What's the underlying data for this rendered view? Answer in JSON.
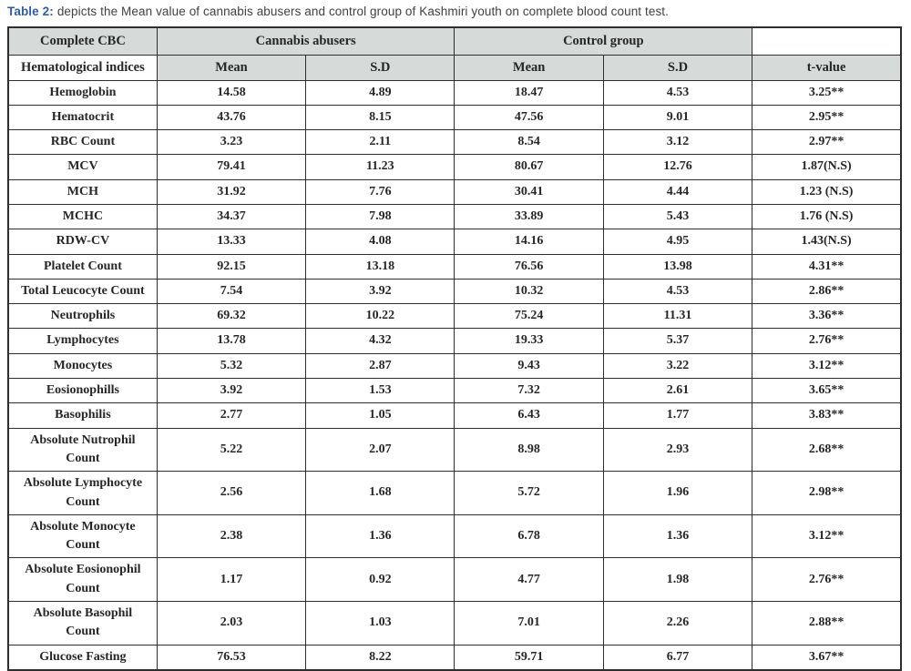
{
  "caption": {
    "label": "Table 2:",
    "text": "depicts the Mean value of cannabis abusers and control group of Kashmiri youth on complete blood count test."
  },
  "colors": {
    "caption_label_blue": "#2b5cad",
    "header_shaded_bg": "#d6dad8",
    "grid_border": "#2e2e2e",
    "table_text": "#262626"
  },
  "table": {
    "header_row1": {
      "col1": "Complete CBC",
      "group1": "Cannabis abusers",
      "group2": "Control group",
      "col6": ""
    },
    "header_row2": {
      "col1": "Hematological indices",
      "mean1": "Mean",
      "sd1": "S.D",
      "mean2": "Mean",
      "sd2": "S.D",
      "tvalue": "t-value"
    }
  },
  "chart_data": {
    "type": "table",
    "title": "Table 2: Mean value of cannabis abusers and control group of Kashmiri youth on complete blood count test",
    "columns": [
      "Hematological indices",
      "Cannabis abusers Mean",
      "Cannabis abusers S.D",
      "Control group Mean",
      "Control group S.D",
      "t-value"
    ],
    "rows": [
      [
        "Hemoglobin",
        "14.58",
        "4.89",
        "18.47",
        "4.53",
        "3.25**"
      ],
      [
        "Hematocrit",
        "43.76",
        "8.15",
        "47.56",
        "9.01",
        "2.95**"
      ],
      [
        "RBC Count",
        "3.23",
        "2.11",
        "8.54",
        "3.12",
        "2.97**"
      ],
      [
        "MCV",
        "79.41",
        "11.23",
        "80.67",
        "12.76",
        "1.87(N.S)"
      ],
      [
        "MCH",
        "31.92",
        "7.76",
        "30.41",
        "4.44",
        "1.23 (N.S)"
      ],
      [
        "MCHC",
        "34.37",
        "7.98",
        "33.89",
        "5.43",
        "1.76 (N.S)"
      ],
      [
        "RDW-CV",
        "13.33",
        "4.08",
        "14.16",
        "4.95",
        "1.43(N.S)"
      ],
      [
        "Platelet Count",
        "92.15",
        "13.18",
        "76.56",
        "13.98",
        "4.31**"
      ],
      [
        "Total Leucocyte Count",
        "7.54",
        "3.92",
        "10.32",
        "4.53",
        "2.86**"
      ],
      [
        "Neutrophils",
        "69.32",
        "10.22",
        "75.24",
        "11.31",
        "3.36**"
      ],
      [
        "Lymphocytes",
        "13.78",
        "4.32",
        "19.33",
        "5.37",
        "2.76**"
      ],
      [
        "Monocytes",
        "5.32",
        "2.87",
        "9.43",
        "3.22",
        "3.12**"
      ],
      [
        "Eosionophills",
        "3.92",
        "1.53",
        "7.32",
        "2.61",
        "3.65**"
      ],
      [
        "Basophilis",
        "2.77",
        "1.05",
        "6.43",
        "1.77",
        "3.83**"
      ],
      [
        "Absolute Nutrophil Count",
        "5.22",
        "2.07",
        "8.98",
        "2.93",
        "2.68**"
      ],
      [
        "Absolute Lymphocyte Count",
        "2.56",
        "1.68",
        "5.72",
        "1.96",
        "2.98**"
      ],
      [
        "Absolute Monocyte Count",
        "2.38",
        "1.36",
        "6.78",
        "1.36",
        "3.12**"
      ],
      [
        "Absolute Eosionophil Count",
        "1.17",
        "0.92",
        "4.77",
        "1.98",
        "2.76**"
      ],
      [
        "Absolute Basophil Count",
        "2.03",
        "1.03",
        "7.01",
        "2.26",
        "2.88**"
      ],
      [
        "Glucose Fasting",
        "76.53",
        "8.22",
        "59.71",
        "6.77",
        "3.67**"
      ]
    ]
  }
}
